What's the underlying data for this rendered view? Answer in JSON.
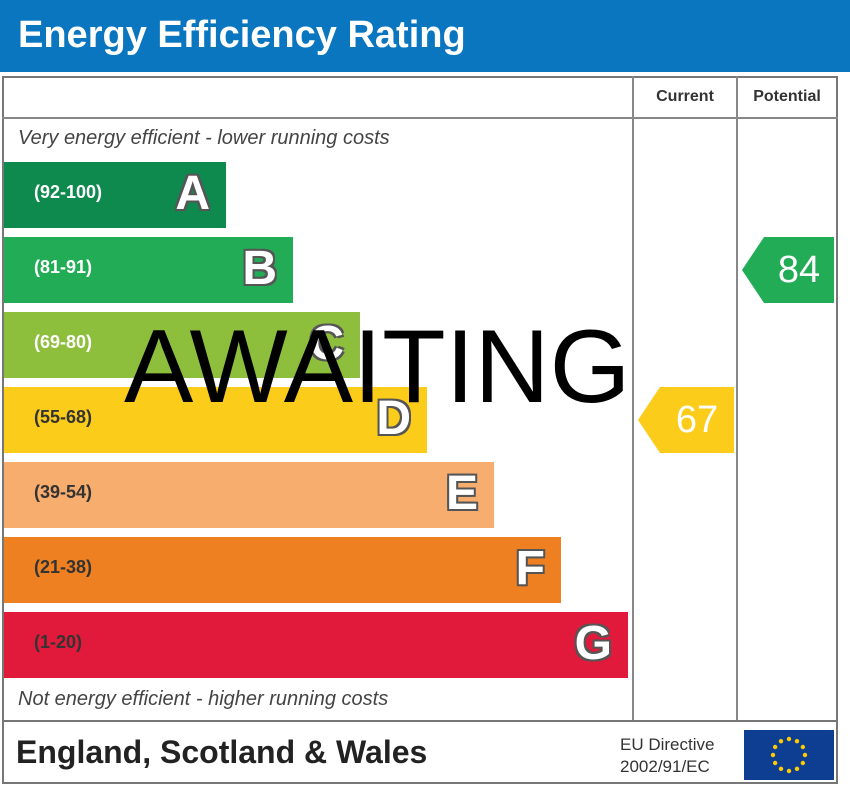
{
  "header": {
    "title": "Energy Efficiency Rating"
  },
  "columns": {
    "current": "Current",
    "potential": "Potential"
  },
  "notes": {
    "top": "Very energy efficient - lower running costs",
    "bottom": "Not energy efficient - higher running costs"
  },
  "stamp_text": "AWAITING",
  "footer": {
    "region": "England, Scotland & Wales",
    "directive_line1": "EU Directive",
    "directive_line2": "2002/91/EC"
  },
  "colors": {
    "header": "#0a76c0",
    "band_A": "#0f8a4f",
    "band_B": "#22ac55",
    "band_C": "#8dbf3c",
    "band_D": "#fccc1a",
    "band_E": "#f6ad6e",
    "band_F": "#ef8021",
    "band_G": "#e11a3b",
    "eu_flag": "#0e3e92",
    "eu_stars": "#ffcc00"
  },
  "chart_data": {
    "type": "bar",
    "title": "Energy Efficiency Rating",
    "categories": [
      "A",
      "B",
      "C",
      "D",
      "E",
      "F",
      "G"
    ],
    "bands": [
      {
        "letter": "A",
        "range": "(92-100)",
        "min": 92,
        "max": 100,
        "color": "#0f8a4f"
      },
      {
        "letter": "B",
        "range": "(81-91)",
        "min": 81,
        "max": 91,
        "color": "#22ac55"
      },
      {
        "letter": "C",
        "range": "(69-80)",
        "min": 69,
        "max": 80,
        "color": "#8dbf3c"
      },
      {
        "letter": "D",
        "range": "(55-68)",
        "min": 55,
        "max": 68,
        "color": "#fccc1a"
      },
      {
        "letter": "E",
        "range": "(39-54)",
        "min": 39,
        "max": 54,
        "color": "#f6ad6e"
      },
      {
        "letter": "F",
        "range": "(21-38)",
        "min": 21,
        "max": 38,
        "color": "#ef8021"
      },
      {
        "letter": "G",
        "range": "(1-20)",
        "min": 1,
        "max": 20,
        "color": "#e11a3b"
      }
    ],
    "ratings": {
      "current": {
        "value": 67,
        "band": "D",
        "color": "#fccc1a"
      },
      "potential": {
        "value": 84,
        "band": "B",
        "color": "#22ac55"
      }
    }
  }
}
